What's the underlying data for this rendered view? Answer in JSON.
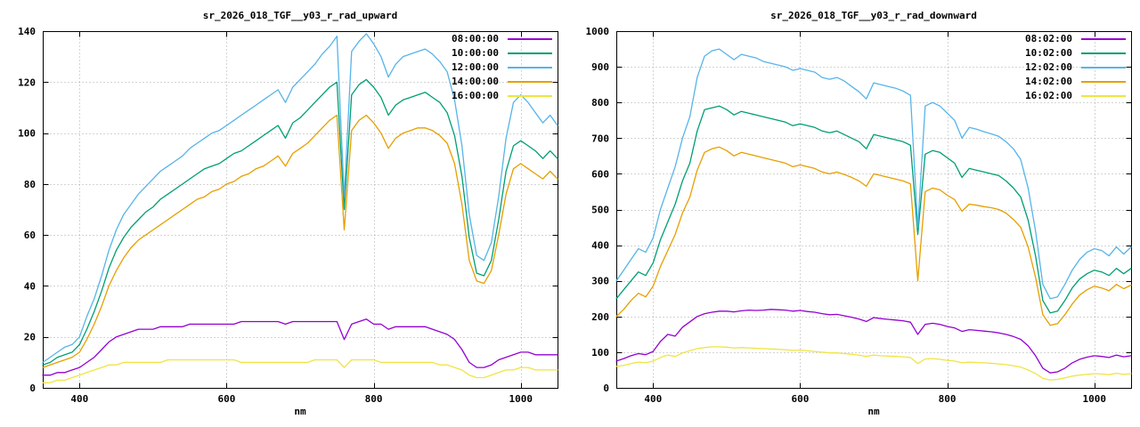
{
  "chart_data": [
    {
      "type": "line",
      "title": "sr_2026_018_TGF__y03_r_rad_upward",
      "xlabel": "nm",
      "ylabel": "",
      "grid": true,
      "legend_position": "top-right",
      "xlim": [
        350,
        1050
      ],
      "ylim": [
        0,
        140
      ],
      "xticks": [
        400,
        600,
        800,
        1000
      ],
      "yticks": [
        0,
        20,
        40,
        60,
        80,
        100,
        120,
        140
      ],
      "x": [
        350,
        360,
        370,
        380,
        390,
        400,
        410,
        420,
        430,
        440,
        450,
        460,
        470,
        480,
        490,
        500,
        510,
        520,
        530,
        540,
        550,
        560,
        570,
        580,
        590,
        600,
        610,
        620,
        630,
        640,
        650,
        660,
        670,
        680,
        690,
        700,
        710,
        720,
        730,
        740,
        750,
        760,
        770,
        780,
        790,
        800,
        810,
        820,
        830,
        840,
        850,
        860,
        870,
        880,
        890,
        900,
        910,
        920,
        930,
        940,
        950,
        960,
        970,
        980,
        990,
        1000,
        1010,
        1020,
        1030,
        1040,
        1050
      ],
      "series": [
        {
          "name": "08:00:00",
          "color": "#9400d3",
          "values": [
            5,
            5,
            6,
            6,
            7,
            8,
            10,
            12,
            15,
            18,
            20,
            21,
            22,
            23,
            23,
            23,
            24,
            24,
            24,
            24,
            25,
            25,
            25,
            25,
            25,
            25,
            25,
            26,
            26,
            26,
            26,
            26,
            26,
            25,
            26,
            26,
            26,
            26,
            26,
            26,
            26,
            19,
            25,
            26,
            27,
            25,
            25,
            23,
            24,
            24,
            24,
            24,
            24,
            23,
            22,
            21,
            19,
            15,
            10,
            8,
            8,
            9,
            11,
            12,
            13,
            14,
            14,
            13,
            13,
            13,
            13
          ]
        },
        {
          "name": "10:00:00",
          "color": "#009e73",
          "values": [
            9,
            10,
            12,
            13,
            14,
            17,
            23,
            30,
            38,
            47,
            54,
            59,
            63,
            66,
            69,
            71,
            74,
            76,
            78,
            80,
            82,
            84,
            86,
            87,
            88,
            90,
            92,
            93,
            95,
            97,
            99,
            101,
            103,
            98,
            104,
            106,
            109,
            112,
            115,
            118,
            120,
            70,
            115,
            119,
            121,
            118,
            114,
            107,
            111,
            113,
            114,
            115,
            116,
            114,
            112,
            108,
            99,
            83,
            59,
            45,
            44,
            50,
            66,
            85,
            95,
            97,
            95,
            93,
            90,
            93,
            90
          ]
        },
        {
          "name": "12:00:00",
          "color": "#56b4e9",
          "values": [
            10,
            12,
            14,
            16,
            17,
            20,
            28,
            35,
            44,
            54,
            62,
            68,
            72,
            76,
            79,
            82,
            85,
            87,
            89,
            91,
            94,
            96,
            98,
            100,
            101,
            103,
            105,
            107,
            109,
            111,
            113,
            115,
            117,
            112,
            118,
            121,
            124,
            127,
            131,
            134,
            138,
            75,
            132,
            136,
            139,
            135,
            130,
            122,
            127,
            130,
            131,
            132,
            133,
            131,
            128,
            124,
            113,
            95,
            68,
            52,
            50,
            57,
            75,
            98,
            112,
            115,
            112,
            108,
            104,
            107,
            103
          ]
        },
        {
          "name": "14:00:00",
          "color": "#e69f00",
          "values": [
            8,
            9,
            10,
            11,
            12,
            14,
            19,
            25,
            32,
            40,
            46,
            51,
            55,
            58,
            60,
            62,
            64,
            66,
            68,
            70,
            72,
            74,
            75,
            77,
            78,
            80,
            81,
            83,
            84,
            86,
            87,
            89,
            91,
            87,
            92,
            94,
            96,
            99,
            102,
            105,
            107,
            62,
            101,
            105,
            107,
            104,
            100,
            94,
            98,
            100,
            101,
            102,
            102,
            101,
            99,
            96,
            88,
            72,
            50,
            42,
            41,
            46,
            60,
            76,
            86,
            88,
            86,
            84,
            82,
            85,
            82
          ]
        },
        {
          "name": "16:00:00",
          "color": "#f0e442",
          "values": [
            2,
            2,
            3,
            3,
            4,
            5,
            6,
            7,
            8,
            9,
            9,
            10,
            10,
            10,
            10,
            10,
            10,
            11,
            11,
            11,
            11,
            11,
            11,
            11,
            11,
            11,
            11,
            10,
            10,
            10,
            10,
            10,
            10,
            10,
            10,
            10,
            10,
            11,
            11,
            11,
            11,
            8,
            11,
            11,
            11,
            11,
            10,
            10,
            10,
            10,
            10,
            10,
            10,
            10,
            9,
            9,
            8,
            7,
            5,
            4,
            4,
            5,
            6,
            7,
            7,
            8,
            8,
            7,
            7,
            7,
            7
          ]
        }
      ]
    },
    {
      "type": "line",
      "title": "sr_2026_018_TGF__y03_r_rad_downward",
      "xlabel": "nm",
      "ylabel": "",
      "grid": true,
      "legend_position": "top-right",
      "xlim": [
        350,
        1050
      ],
      "ylim": [
        0,
        1000
      ],
      "xticks": [
        400,
        600,
        800,
        1000
      ],
      "yticks": [
        0,
        100,
        200,
        300,
        400,
        500,
        600,
        700,
        800,
        900,
        1000
      ],
      "x": [
        350,
        360,
        370,
        380,
        390,
        400,
        410,
        420,
        430,
        440,
        450,
        460,
        470,
        480,
        490,
        500,
        510,
        520,
        530,
        540,
        550,
        560,
        570,
        580,
        590,
        600,
        610,
        620,
        630,
        640,
        650,
        660,
        670,
        680,
        690,
        700,
        710,
        720,
        730,
        740,
        750,
        760,
        770,
        780,
        790,
        800,
        810,
        820,
        830,
        840,
        850,
        860,
        870,
        880,
        890,
        900,
        910,
        920,
        930,
        940,
        950,
        960,
        970,
        980,
        990,
        1000,
        1010,
        1020,
        1030,
        1040,
        1050
      ],
      "series": [
        {
          "name": "08:02:00",
          "color": "#9400d3",
          "values": [
            75,
            82,
            90,
            96,
            93,
            102,
            130,
            150,
            145,
            170,
            185,
            200,
            208,
            212,
            215,
            215,
            213,
            216,
            218,
            217,
            218,
            220,
            219,
            218,
            215,
            217,
            214,
            212,
            208,
            205,
            206,
            202,
            198,
            193,
            186,
            197,
            194,
            192,
            190,
            188,
            184,
            150,
            178,
            181,
            178,
            172,
            168,
            158,
            163,
            161,
            159,
            157,
            154,
            150,
            144,
            136,
            118,
            90,
            55,
            42,
            45,
            55,
            70,
            80,
            86,
            90,
            88,
            85,
            92,
            87,
            90
          ]
        },
        {
          "name": "10:02:00",
          "color": "#009e73",
          "values": [
            250,
            275,
            300,
            325,
            315,
            350,
            415,
            465,
            515,
            580,
            630,
            720,
            780,
            785,
            790,
            780,
            765,
            775,
            770,
            765,
            760,
            755,
            750,
            745,
            735,
            740,
            735,
            730,
            720,
            715,
            720,
            710,
            700,
            690,
            670,
            710,
            705,
            700,
            695,
            690,
            680,
            430,
            655,
            665,
            660,
            645,
            630,
            590,
            615,
            610,
            605,
            600,
            595,
            580,
            560,
            535,
            470,
            370,
            245,
            210,
            215,
            245,
            280,
            305,
            320,
            330,
            325,
            315,
            335,
            320,
            335
          ]
        },
        {
          "name": "12:02:00",
          "color": "#56b4e9",
          "values": [
            300,
            330,
            360,
            390,
            380,
            420,
            500,
            560,
            620,
            700,
            760,
            870,
            930,
            945,
            950,
            935,
            920,
            935,
            930,
            925,
            915,
            910,
            905,
            900,
            890,
            895,
            890,
            885,
            870,
            865,
            870,
            860,
            845,
            830,
            810,
            855,
            850,
            845,
            840,
            832,
            820,
            450,
            790,
            800,
            790,
            770,
            750,
            700,
            730,
            725,
            718,
            712,
            705,
            690,
            670,
            640,
            560,
            440,
            290,
            250,
            255,
            290,
            330,
            360,
            380,
            390,
            385,
            370,
            395,
            375,
            395
          ]
        },
        {
          "name": "14:02:00",
          "color": "#e69f00",
          "values": [
            200,
            220,
            245,
            265,
            255,
            285,
            340,
            385,
            430,
            490,
            535,
            610,
            660,
            670,
            675,
            665,
            650,
            660,
            655,
            650,
            645,
            640,
            635,
            630,
            620,
            625,
            620,
            615,
            605,
            600,
            605,
            598,
            590,
            580,
            565,
            600,
            595,
            590,
            585,
            580,
            572,
            300,
            550,
            560,
            555,
            540,
            528,
            495,
            515,
            512,
            508,
            505,
            500,
            490,
            472,
            450,
            395,
            310,
            205,
            175,
            180,
            205,
            235,
            260,
            275,
            285,
            280,
            272,
            290,
            278,
            288
          ]
        },
        {
          "name": "16:02:00",
          "color": "#f0e442",
          "values": [
            60,
            63,
            68,
            72,
            70,
            75,
            85,
            92,
            88,
            98,
            104,
            110,
            113,
            115,
            115,
            114,
            112,
            113,
            112,
            111,
            110,
            109,
            108,
            107,
            105,
            106,
            104,
            102,
            100,
            98,
            98,
            96,
            94,
            92,
            88,
            92,
            90,
            89,
            88,
            87,
            85,
            68,
            81,
            82,
            80,
            77,
            75,
            70,
            72,
            71,
            70,
            69,
            67,
            65,
            62,
            58,
            50,
            40,
            27,
            22,
            24,
            28,
            33,
            36,
            38,
            40,
            39,
            37,
            41,
            38,
            40
          ]
        }
      ]
    }
  ]
}
